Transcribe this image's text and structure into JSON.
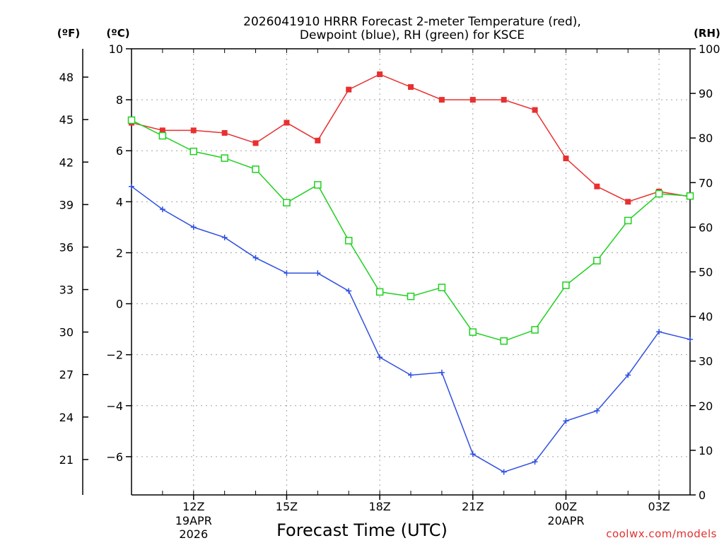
{
  "chart_data": {
    "type": "line",
    "title": [
      "2026041910 HRRR Forecast 2-meter Temperature (red),",
      "Dewpoint (blue), RH (green) for KSCE"
    ],
    "xlabel": "Forecast Time (UTC)",
    "credit": "coolwx.com/models",
    "x_hours": [
      0,
      1,
      2,
      3,
      4,
      5,
      6,
      7,
      8,
      9,
      10,
      11,
      12,
      13,
      14,
      15,
      16,
      17,
      18
    ],
    "x_ticks": [
      {
        "hour": 2,
        "label": "12Z",
        "sub1": "19APR",
        "sub2": "2026"
      },
      {
        "hour": 5,
        "label": "15Z"
      },
      {
        "hour": 8,
        "label": "18Z"
      },
      {
        "hour": 11,
        "label": "21Z"
      },
      {
        "hour": 14,
        "label": "00Z",
        "sub1": "20APR"
      },
      {
        "hour": 17,
        "label": "03Z"
      }
    ],
    "x_range": [
      0,
      18
    ],
    "celsius_axis": {
      "label": "(ºC)",
      "range": [
        -7.5,
        10
      ],
      "ticks": [
        -6,
        -4,
        -2,
        0,
        2,
        4,
        6,
        8,
        10
      ]
    },
    "fahrenheit_axis": {
      "label": "(ºF)",
      "ticks": [
        21,
        24,
        27,
        30,
        33,
        36,
        39,
        42,
        45,
        48
      ]
    },
    "rh_axis": {
      "label": "(RH)",
      "range": [
        0,
        100
      ],
      "ticks": [
        0,
        10,
        20,
        30,
        40,
        50,
        60,
        70,
        80,
        90,
        100
      ]
    },
    "series": [
      {
        "name": "Temperature",
        "unit": "C",
        "color": "#e83030",
        "marker": "square-filled",
        "values": [
          7.1,
          6.8,
          6.8,
          6.7,
          6.3,
          7.1,
          6.4,
          8.4,
          9.0,
          8.5,
          8.0,
          8.0,
          8.0,
          7.6,
          5.7,
          4.6,
          4.0,
          4.4,
          4.2
        ]
      },
      {
        "name": "Dewpoint",
        "unit": "C",
        "color": "#3050e0",
        "marker": "plus",
        "values": [
          4.6,
          3.7,
          3.0,
          2.6,
          1.8,
          1.2,
          1.2,
          0.5,
          -2.1,
          -2.8,
          -2.7,
          -5.9,
          -6.6,
          -6.2,
          -4.6,
          -4.2,
          -2.8,
          -1.1,
          -1.4
        ]
      },
      {
        "name": "RH",
        "unit": "%",
        "color": "#20d020",
        "marker": "square-open",
        "values": [
          84,
          80.5,
          77,
          75.5,
          73,
          65.5,
          69.5,
          57,
          45.5,
          44.5,
          46.5,
          36.5,
          34.5,
          37,
          47,
          52.5,
          61.5,
          67.5,
          67
        ]
      }
    ]
  }
}
